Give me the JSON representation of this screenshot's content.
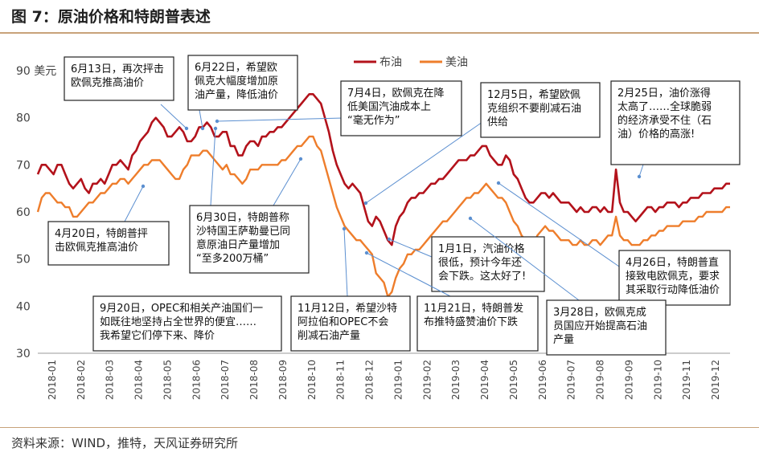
{
  "header": {
    "title": "图 7：原油价格和特朗普表述"
  },
  "footer": {
    "source": "资料来源：WIND，推特，天风证券研究所"
  },
  "colors": {
    "brent": "#b3121b",
    "wti": "#ee7d2b",
    "rule": "#c8a27a",
    "callout_line": "#5b8fd0"
  },
  "chart_data": {
    "type": "line",
    "ylabel": "美元",
    "ylim": [
      30,
      90
    ],
    "yticks": [
      30,
      40,
      50,
      60,
      70,
      80,
      90
    ],
    "x_tick_labels": [
      "2018-01",
      "2018-02",
      "2018-03",
      "2018-04",
      "2018-05",
      "2018-06",
      "2018-07",
      "2018-08",
      "2018-09",
      "2018-10",
      "2018-11",
      "2018-12",
      "2019-01",
      "2019-02",
      "2019-03",
      "2019-04",
      "2019-05",
      "2019-06",
      "2019-07",
      "2019-08",
      "2019-09",
      "2019-10",
      "2019-11",
      "2019-12"
    ],
    "grid": false,
    "legend": "top-center",
    "series": [
      {
        "name": "布油",
        "color": "#b3121b",
        "values": [
          68,
          70,
          70,
          69,
          68,
          70,
          70,
          68,
          66,
          65,
          66,
          67,
          65,
          64,
          66,
          66,
          67,
          66,
          68,
          70,
          70,
          71,
          70,
          69,
          72,
          73,
          75,
          76,
          77,
          79,
          80,
          79,
          78,
          76,
          76,
          77,
          78,
          77,
          75,
          75,
          76,
          78,
          78,
          79,
          78,
          76,
          76,
          77,
          77,
          74,
          74,
          72,
          72,
          74,
          75,
          75,
          74,
          76,
          76,
          77,
          77,
          78,
          78,
          79,
          80,
          81,
          82,
          83,
          84,
          85,
          85,
          84,
          83,
          80,
          77,
          73,
          70,
          68,
          66,
          65,
          66,
          65,
          64,
          61,
          58,
          57,
          59,
          58,
          56,
          54,
          53,
          57,
          59,
          60,
          62,
          63,
          63,
          64,
          64,
          65,
          66,
          66,
          67,
          67,
          68,
          69,
          70,
          71,
          71,
          71,
          72,
          72,
          73,
          74,
          74,
          72,
          71,
          70,
          70,
          72,
          71,
          68,
          67,
          65,
          63,
          62,
          62,
          63,
          64,
          64,
          63,
          64,
          63,
          62,
          62,
          62,
          61,
          60,
          61,
          60,
          60,
          61,
          61,
          60,
          61,
          60,
          60,
          69,
          62,
          60,
          60,
          59,
          58,
          59,
          60,
          61,
          61,
          60,
          61,
          61,
          62,
          62,
          62,
          61,
          62,
          62,
          63,
          63,
          63,
          64,
          64,
          64,
          65,
          65,
          65,
          66,
          66
        ]
      },
      {
        "name": "美油",
        "color": "#ee7d2b",
        "values": [
          60,
          63,
          64,
          64,
          63,
          62,
          62,
          61,
          61,
          59,
          59,
          60,
          61,
          62,
          62,
          63,
          64,
          64,
          65,
          66,
          66,
          67,
          67,
          66,
          67,
          68,
          69,
          70,
          70,
          71,
          71,
          71,
          70,
          69,
          68,
          67,
          67,
          69,
          70,
          72,
          72,
          72,
          73,
          73,
          72,
          71,
          70,
          69,
          70,
          68,
          68,
          67,
          66,
          67,
          69,
          69,
          69,
          70,
          70,
          70,
          70,
          70,
          71,
          71,
          72,
          73,
          74,
          74,
          75,
          76,
          76,
          74,
          73,
          70,
          67,
          64,
          61,
          59,
          57,
          56,
          55,
          54,
          54,
          53,
          52,
          51,
          47,
          46,
          45,
          42,
          43,
          46,
          48,
          49,
          51,
          51,
          52,
          52,
          53,
          54,
          55,
          56,
          57,
          58,
          58,
          59,
          60,
          61,
          62,
          63,
          63,
          64,
          64,
          65,
          66,
          65,
          64,
          63,
          63,
          62,
          60,
          58,
          57,
          55,
          54,
          53,
          53,
          55,
          56,
          57,
          56,
          56,
          55,
          54,
          54,
          54,
          53,
          53,
          54,
          53,
          53,
          54,
          54,
          53,
          54,
          55,
          55,
          59,
          55,
          54,
          54,
          53,
          53,
          53,
          54,
          54,
          55,
          55,
          56,
          56,
          57,
          57,
          57,
          57,
          58,
          58,
          58,
          58,
          59,
          59,
          60,
          60,
          60,
          60,
          60,
          61,
          61
        ]
      }
    ],
    "annotations": [
      {
        "id": "a1",
        "text": [
          "6月13日，再次抨击",
          "欧佩克推高油价"
        ]
      },
      {
        "id": "a2",
        "text": [
          "6月22日，希望欧",
          "佩克大幅度增加原",
          "油产量，降低油价"
        ]
      },
      {
        "id": "a3",
        "text": [
          "7月4日，欧佩克在降",
          "低美国汽油成本上",
          "“毫无作为”"
        ]
      },
      {
        "id": "a4",
        "text": [
          "12月5日，希望欧佩",
          "克组织不要削减石油",
          "供给"
        ]
      },
      {
        "id": "a5",
        "text": [
          "2月25日，油价涨得",
          "太高了……全球脆弱",
          "的经济承受不住（石",
          "油）价格的高涨!"
        ]
      },
      {
        "id": "a6",
        "text": [
          "4月20日，特朗普抨",
          "击欧佩克推高油价"
        ]
      },
      {
        "id": "a7",
        "text": [
          "6月30日，特朗普称",
          "沙特国王萨勒曼已同",
          "意原油日产量增加",
          "“至多200万桶”"
        ]
      },
      {
        "id": "a8",
        "text": [
          "1月1日，汽油价格",
          "很低，预计今年还",
          "会下跌。这太好了!"
        ]
      },
      {
        "id": "a9",
        "text": [
          "4月26日，特朗普直",
          "接致电欧佩克，要求",
          "其采取行动降低油价"
        ]
      },
      {
        "id": "a10",
        "text": [
          "9月20日，OPEC和相关产油国们一",
          "如既往地坚持占全世界的便宜……",
          "我希望它们停下来、降价"
        ]
      },
      {
        "id": "a11",
        "text": [
          "11月12日，希望沙特",
          "阿拉伯和OPEC不会",
          "削减石油产量"
        ]
      },
      {
        "id": "a12",
        "text": [
          "11月21日，特朗普发",
          "布推特盛赞油价下跌"
        ]
      },
      {
        "id": "a13",
        "text": [
          "3月28日，欧佩克成",
          "员国应开始提高石油",
          "产量"
        ]
      }
    ]
  }
}
